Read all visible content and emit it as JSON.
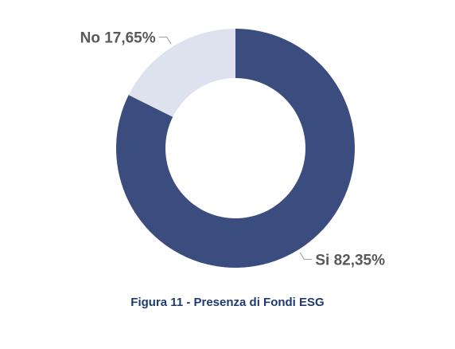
{
  "chart_data": {
    "type": "pie",
    "variant": "donut",
    "slices": [
      {
        "label": "Si 82,35%",
        "name": "Si",
        "value": 82.35,
        "color": "#3b4d7f"
      },
      {
        "label": "No 17,65%",
        "name": "No",
        "value": 17.65,
        "color": "#dde2ee"
      }
    ],
    "leader_color": "#a6a6a6"
  },
  "caption": "Figura 11 - Presenza di Fondi ESG"
}
